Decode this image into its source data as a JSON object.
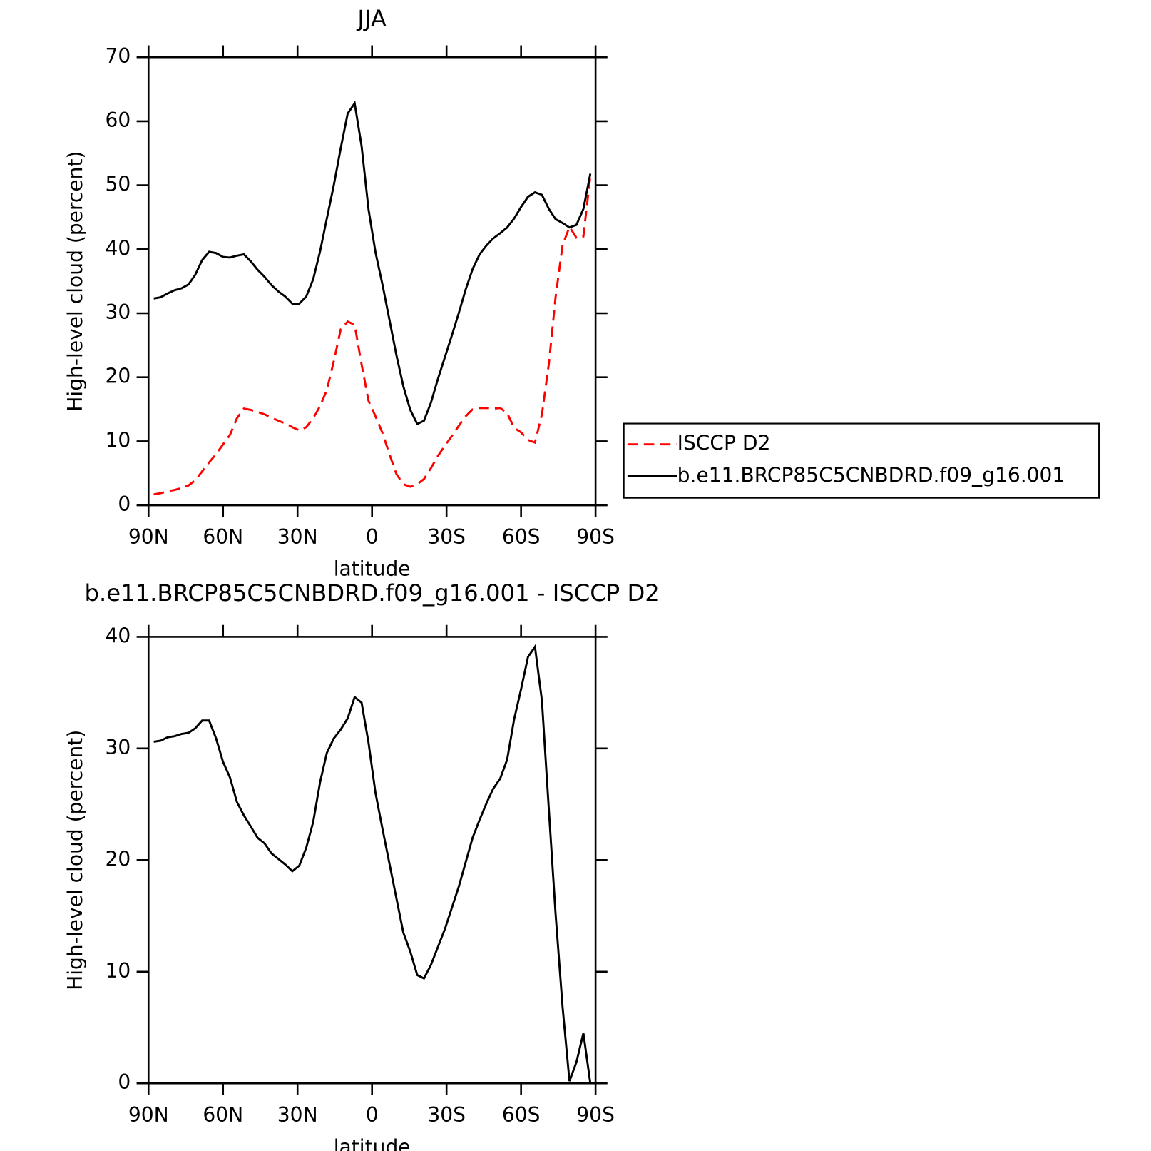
{
  "chart_data": [
    {
      "type": "line",
      "title": "JJA",
      "x_label": "latitude",
      "y_label": "High-level cloud (percent)",
      "x": [
        87.9,
        85.1,
        82.3,
        79.5,
        76.7,
        73.9,
        71.2,
        68.4,
        65.6,
        62.8,
        60.0,
        57.2,
        54.4,
        51.6,
        48.8,
        46.1,
        43.3,
        40.5,
        37.7,
        34.9,
        32.1,
        29.3,
        26.5,
        23.7,
        20.9,
        18.2,
        15.4,
        12.6,
        9.8,
        7.0,
        4.2,
        1.4,
        -1.4,
        -4.2,
        -7.0,
        -9.8,
        -12.6,
        -15.4,
        -18.2,
        -20.9,
        -23.7,
        -26.5,
        -29.3,
        -32.1,
        -34.9,
        -37.7,
        -40.5,
        -43.3,
        -46.1,
        -48.8,
        -51.6,
        -54.4,
        -57.2,
        -60.0,
        -62.8,
        -65.6,
        -68.4,
        -71.2,
        -73.9,
        -76.7,
        -79.5,
        -82.3,
        -85.1,
        -87.9
      ],
      "xlim": [
        90,
        -90
      ],
      "xticks": [
        {
          "value": 90,
          "label": "90N"
        },
        {
          "value": 60,
          "label": "60N"
        },
        {
          "value": 30,
          "label": "30N"
        },
        0,
        {
          "value": -30,
          "label": "30S"
        },
        {
          "value": -60,
          "label": "60S"
        },
        {
          "value": -90,
          "label": "90S"
        }
      ],
      "ylim": [
        0,
        70
      ],
      "yticks": [
        0,
        10,
        20,
        30,
        40,
        50,
        60,
        70
      ],
      "legend": "right",
      "series": [
        {
          "name": "ISCCP D2",
          "color": "#ff0000",
          "dash": "dashed",
          "values": [
            1.7,
            1.9,
            2.2,
            2.4,
            2.7,
            3.1,
            3.9,
            5.3,
            6.7,
            8.0,
            9.5,
            11.0,
            13.6,
            15.1,
            14.9,
            14.6,
            14.2,
            13.7,
            13.2,
            12.8,
            12.2,
            11.7,
            12.2,
            13.6,
            15.5,
            18.0,
            22.5,
            27.5,
            28.7,
            28.2,
            22.0,
            16.3,
            13.9,
            11.3,
            8.0,
            4.9,
            3.3,
            2.9,
            3.3,
            4.1,
            5.8,
            7.7,
            9.3,
            10.8,
            12.4,
            13.9,
            15.0,
            15.2,
            15.2,
            15.1,
            15.2,
            14.4,
            12.1,
            11.4,
            10.2,
            9.8,
            14.2,
            22.1,
            32.5,
            40.6,
            43.5,
            41.8,
            42.0,
            51.5
          ]
        },
        {
          "name": "b.e11.BRCP85C5CNBDRD.f09_g16.001",
          "color": "#000000",
          "dash": "solid",
          "values": [
            32.3,
            32.5,
            33.1,
            33.6,
            33.9,
            34.5,
            36.0,
            38.3,
            39.6,
            39.4,
            38.8,
            38.7,
            39.0,
            39.2,
            38.1,
            36.8,
            35.7,
            34.4,
            33.4,
            32.6,
            31.5,
            31.5,
            32.6,
            35.3,
            39.7,
            44.8,
            50.0,
            55.8,
            61.2,
            62.8,
            56.1,
            46.2,
            39.5,
            34.5,
            29.0,
            23.5,
            18.6,
            14.9,
            12.7,
            13.2,
            16.0,
            19.7,
            23.1,
            26.5,
            30.0,
            33.7,
            36.9,
            39.2,
            40.6,
            41.7,
            42.5,
            43.4,
            44.8,
            46.6,
            48.2,
            48.9,
            48.5,
            46.3,
            44.7,
            44.1,
            43.4,
            43.8,
            46.3,
            51.8
          ]
        }
      ]
    },
    {
      "type": "line",
      "title": "b.e11.BRCP85C5CNBDRD.f09_g16.001 - ISCCP D2",
      "x_label": "latitude",
      "y_label": "High-level cloud (percent)",
      "x": [
        87.9,
        85.1,
        82.3,
        79.5,
        76.7,
        73.9,
        71.2,
        68.4,
        65.6,
        62.8,
        60.0,
        57.2,
        54.4,
        51.6,
        48.8,
        46.1,
        43.3,
        40.5,
        37.7,
        34.9,
        32.1,
        29.3,
        26.5,
        23.7,
        20.9,
        18.2,
        15.4,
        12.6,
        9.8,
        7.0,
        4.2,
        1.4,
        -1.4,
        -4.2,
        -7.0,
        -9.8,
        -12.6,
        -15.4,
        -18.2,
        -20.9,
        -23.7,
        -26.5,
        -29.3,
        -32.1,
        -34.9,
        -37.7,
        -40.5,
        -43.3,
        -46.1,
        -48.8,
        -51.6,
        -54.4,
        -57.2,
        -60.0,
        -62.8,
        -65.6,
        -68.4,
        -71.2,
        -73.9,
        -76.7,
        -79.5,
        -82.3,
        -85.1,
        -87.9
      ],
      "xlim": [
        90,
        -90
      ],
      "xticks": [
        {
          "value": 90,
          "label": "90N"
        },
        {
          "value": 60,
          "label": "60N"
        },
        {
          "value": 30,
          "label": "30N"
        },
        0,
        {
          "value": -30,
          "label": "30S"
        },
        {
          "value": -60,
          "label": "60S"
        },
        {
          "value": -90,
          "label": "90S"
        }
      ],
      "ylim": [
        0,
        40
      ],
      "yticks": [
        0,
        10,
        20,
        30,
        40
      ],
      "series": [
        {
          "color": "#000000",
          "dash": "solid",
          "values": [
            30.6,
            30.7,
            31.0,
            31.1,
            31.3,
            31.4,
            31.8,
            32.5,
            32.5,
            30.9,
            28.8,
            27.4,
            25.2,
            24.0,
            23.0,
            22.0,
            21.5,
            20.6,
            20.1,
            19.6,
            19.0,
            19.5,
            21.1,
            23.4,
            27.0,
            29.6,
            30.9,
            31.7,
            32.7,
            34.6,
            34.1,
            30.5,
            26.0,
            22.8,
            19.7,
            16.6,
            13.5,
            11.8,
            9.7,
            9.4,
            10.6,
            12.2,
            13.8,
            15.7,
            17.6,
            19.8,
            22.0,
            23.6,
            25.1,
            26.4,
            27.3,
            29.0,
            32.6,
            35.3,
            38.2,
            39.1,
            34.3,
            24.5,
            15.2,
            6.9,
            0.2,
            1.9,
            4.5,
            0.0
          ]
        }
      ]
    }
  ]
}
